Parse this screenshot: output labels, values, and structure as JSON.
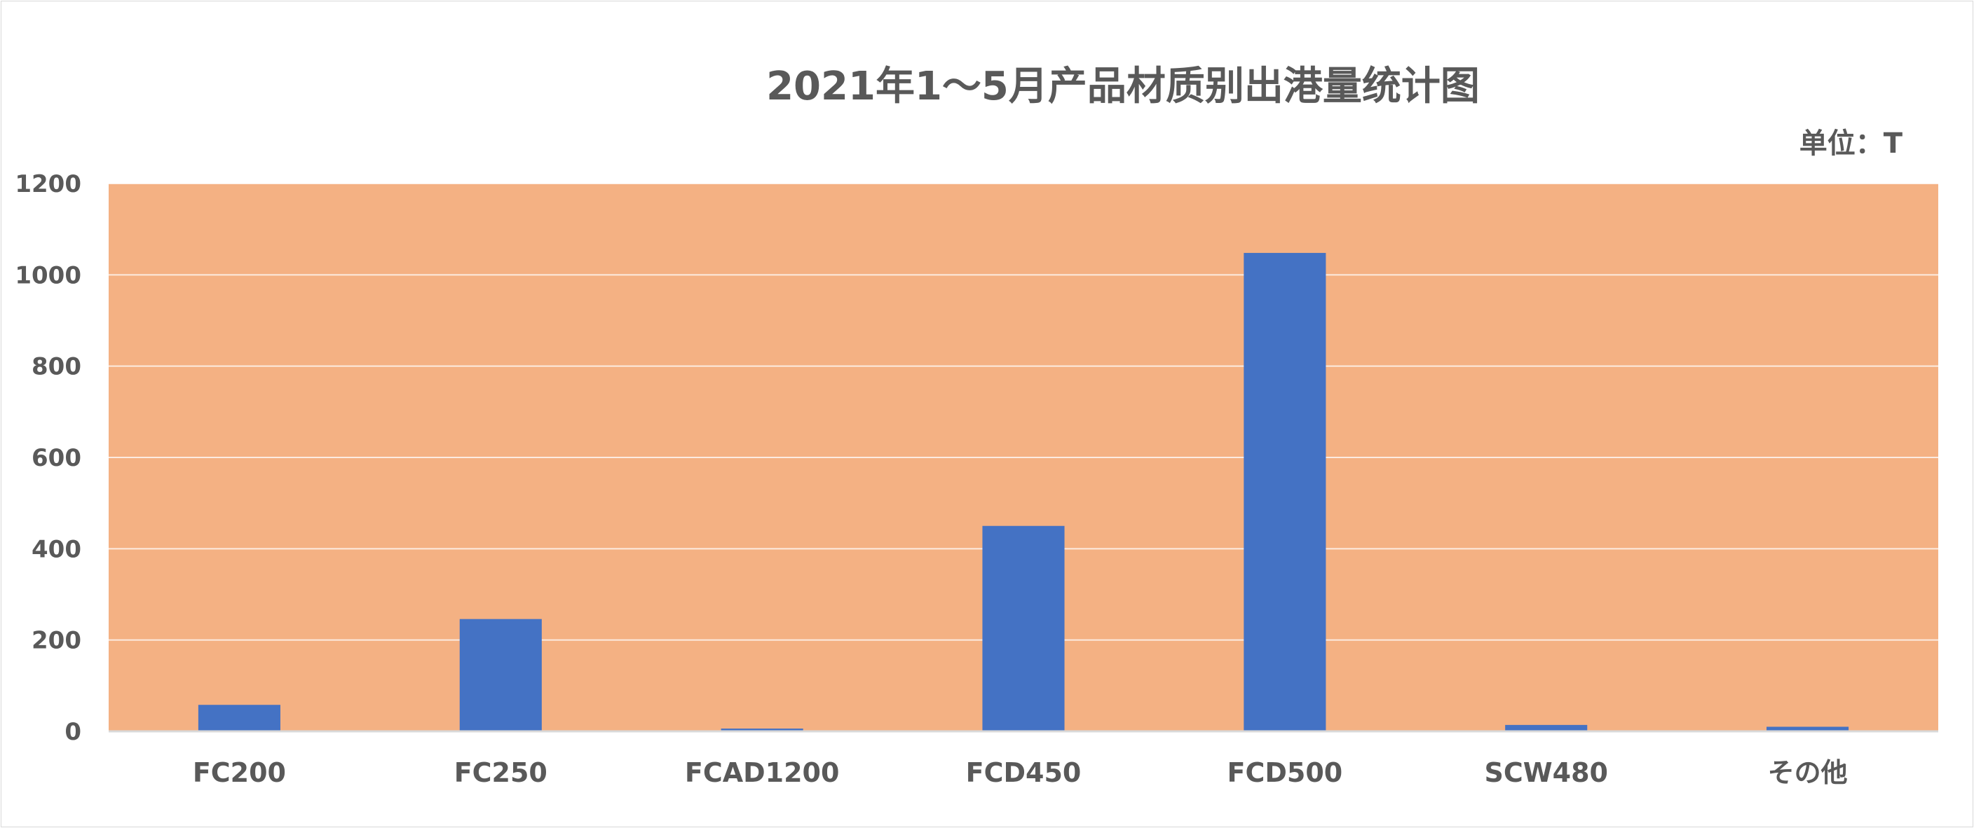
{
  "chart_data": {
    "type": "bar",
    "title": "2021年1～5月产品材质别出港量统计图",
    "unit_label": "单位：T",
    "xlabel": "",
    "ylabel": "",
    "categories": [
      "FC200",
      "FC250",
      "FCAD1200",
      "FCD450",
      "FCD500",
      "SCW480",
      "その他"
    ],
    "values": [
      58,
      246,
      6,
      450,
      1048,
      14,
      10
    ],
    "ylim": [
      0,
      1200
    ],
    "y_ticks": [
      0,
      200,
      400,
      600,
      800,
      1000,
      1200
    ],
    "grid": true,
    "legend": "none",
    "colors": {
      "bar": "#4472c4",
      "plot_background": "#f4b183",
      "gridline": "#ffffff",
      "axis_line": "#d9d9d9",
      "text": "#595959"
    }
  }
}
